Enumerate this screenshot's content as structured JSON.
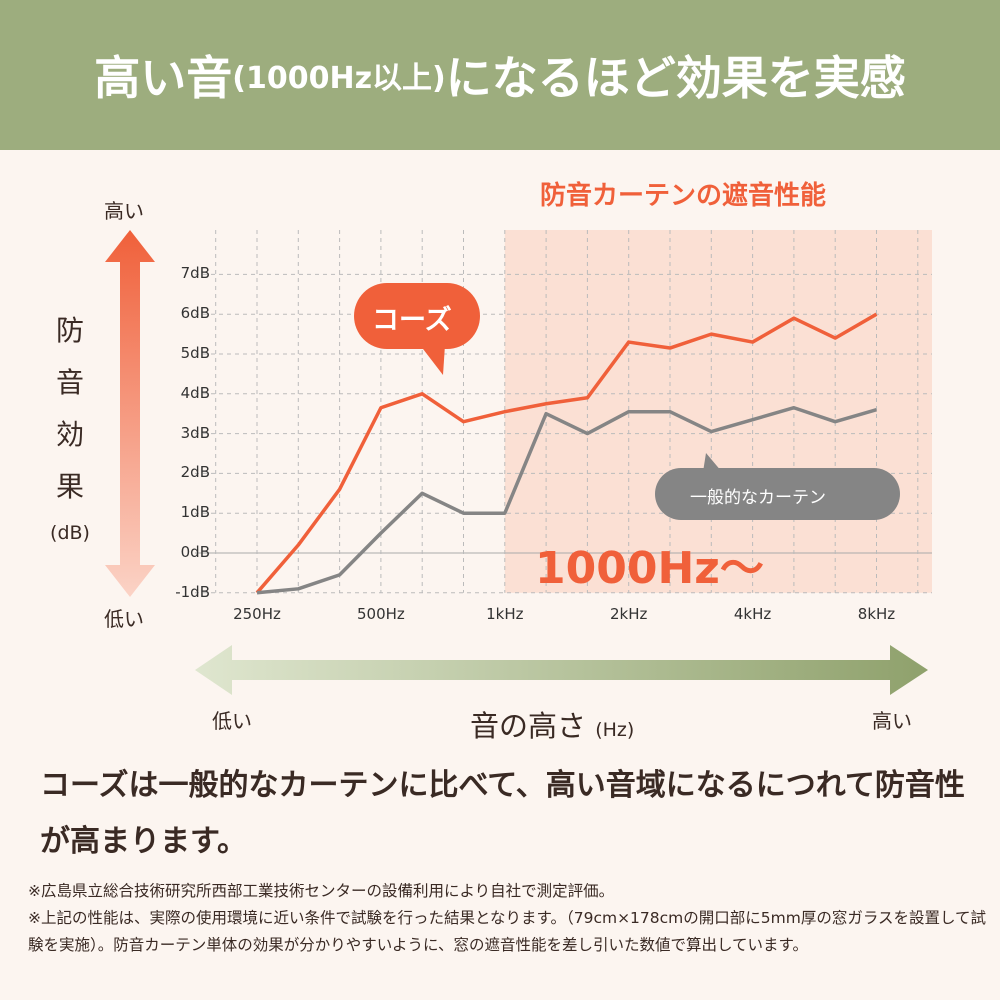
{
  "header": {
    "title_a": "高い音",
    "title_b": "(1000Hz以上)",
    "title_c": "になるほど効果を実感"
  },
  "chart_data": {
    "type": "line",
    "title": "防音カーテンの遮音性能",
    "ylabel": "防音効果 (dB)",
    "ylabel_chars": [
      "防",
      "音",
      "効",
      "果"
    ],
    "ylabel_unit": "(dB)",
    "xlabel": "音の高さ",
    "xlabel_unit": "(Hz)",
    "y_high": "高い",
    "y_low": "低い",
    "x_low": "低い",
    "x_high": "高い",
    "ylim": [
      -1,
      7
    ],
    "y_ticks": [
      "7dB",
      "6dB",
      "5dB",
      "4dB",
      "3dB",
      "2dB",
      "1dB",
      "0dB",
      "-1dB"
    ],
    "x": [
      "250",
      "315",
      "400",
      "500",
      "630",
      "800",
      "1k",
      "1.25k",
      "1.6k",
      "2k",
      "2.5k",
      "3.15k",
      "4k",
      "5k",
      "6.3k",
      "8k"
    ],
    "x_tick_labels": [
      {
        "i": 0,
        "label": "250Hz"
      },
      {
        "i": 3,
        "label": "500Hz"
      },
      {
        "i": 6,
        "label": "1kHz"
      },
      {
        "i": 9,
        "label": "2kHz"
      },
      {
        "i": 12,
        "label": "4kHz"
      },
      {
        "i": 15,
        "label": "8kHz"
      }
    ],
    "highlight_from_index": 6,
    "highlight_label": "1000Hz〜",
    "series": [
      {
        "name": "コーズ",
        "color": "#f0603a",
        "values": [
          -1.0,
          0.2,
          1.6,
          3.65,
          4.0,
          3.3,
          3.55,
          3.75,
          3.9,
          5.3,
          5.15,
          5.5,
          5.3,
          5.9,
          5.4,
          6.0
        ]
      },
      {
        "name": "一般的なカーテン",
        "color": "#858585",
        "values": [
          -1.0,
          -0.9,
          -0.55,
          0.5,
          1.5,
          1.0,
          1.0,
          3.5,
          3.0,
          3.55,
          3.55,
          3.05,
          3.35,
          3.65,
          3.3,
          3.6
        ]
      }
    ]
  },
  "message": "コーズは一般的なカーテンに比べて、高い音域になるにつれて防音性が高まります。",
  "notes": [
    "※広島県立総合技術研究所西部工業技術センターの設備利用により自社で測定評価。",
    "※上記の性能は、実際の使用環境に近い条件で試験を行った結果となります。（79cm×178cmの開口部に5mm厚の窓ガラスを設置して試験を実施）。防音カーテン単体の効果が分かりやすいように、窓の遮音性能を差し引いた数値で算出しています。"
  ]
}
